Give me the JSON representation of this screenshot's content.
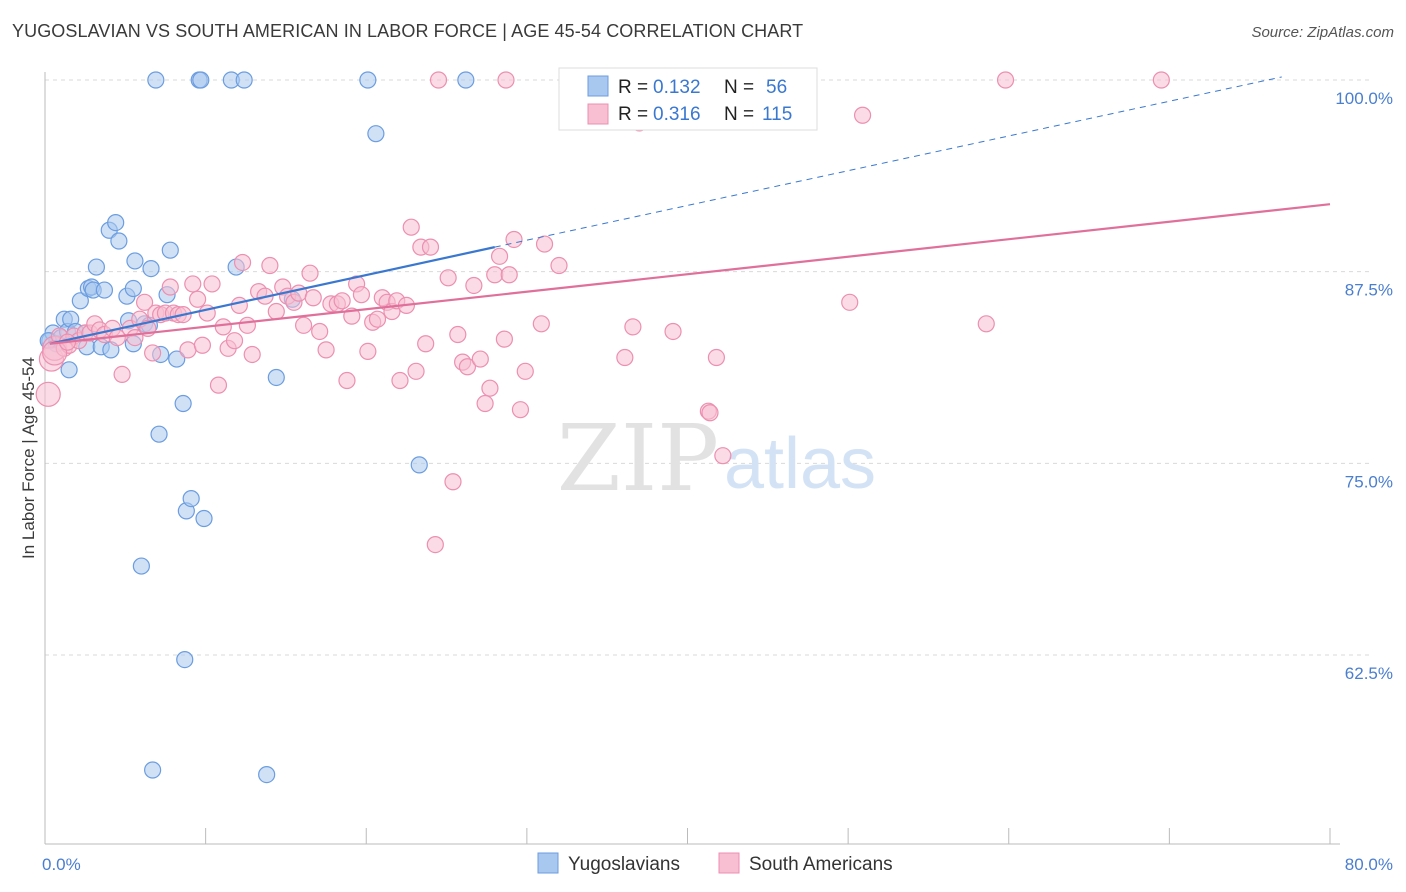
{
  "title": "YUGOSLAVIAN VS SOUTH AMERICAN IN LABOR FORCE | AGE 45-54 CORRELATION CHART",
  "source": "Source: ZipAtlas.com",
  "watermark": {
    "zip": "ZIP",
    "atlas": "atlas"
  },
  "colors": {
    "blue_fill": "#a9c8ef",
    "blue_stroke": "#6b9de0",
    "blue_line": "#3a78d0",
    "pink_fill": "#f7bfd1",
    "pink_stroke": "#ec8fb0",
    "pink_line": "#e0709a",
    "axis_text_blue": "#4a7ecf",
    "grid": "#d9d9d9"
  },
  "legend_top": {
    "rows": [
      {
        "r_label": "R = ",
        "r_value": "0.132",
        "n_label": "N = ",
        "n_value": "56",
        "series": "blue"
      },
      {
        "r_label": "R = ",
        "r_value": "0.316",
        "n_label": "N = ",
        "n_value": "115",
        "series": "pink"
      }
    ]
  },
  "chart_data": {
    "type": "scatter",
    "title": "YUGOSLAVIAN VS SOUTH AMERICAN IN LABOR FORCE | AGE 45-54 CORRELATION CHART",
    "xlabel": "",
    "ylabel": "In Labor Force | Age 45-54",
    "xlim": [
      0,
      80
    ],
    "ylim": [
      50,
      102
    ],
    "x_tick_labels": [
      {
        "value": 0,
        "label": "0.0%"
      },
      {
        "value": 80,
        "label": "80.0%"
      }
    ],
    "y_tick_labels": [
      {
        "value": 100,
        "label": "100.0%"
      },
      {
        "value": 87.5,
        "label": "87.5%"
      },
      {
        "value": 75,
        "label": "75.0%"
      },
      {
        "value": 62.5,
        "label": "62.5%"
      }
    ],
    "grid": true,
    "legend_position": "bottom-center",
    "series": [
      {
        "name": "Yugoslavians",
        "color": "blue",
        "r": 0.132,
        "n": 56,
        "trend": {
          "x": [
            0.3,
            28
          ],
          "y": [
            82.8,
            89.1
          ]
        },
        "trend_extension": {
          "x": [
            28,
            77
          ],
          "y": [
            89.1,
            100.2
          ]
        },
        "points": [
          [
            0.3,
            83.0
          ],
          [
            0.5,
            83.5
          ],
          [
            0.7,
            82.8
          ],
          [
            1.0,
            83.2
          ],
          [
            1.2,
            84.4
          ],
          [
            1.4,
            83.6
          ],
          [
            1.5,
            81.1
          ],
          [
            1.6,
            84.4
          ],
          [
            1.9,
            83.6
          ],
          [
            2.2,
            85.6
          ],
          [
            2.5,
            83.5
          ],
          [
            2.6,
            82.6
          ],
          [
            2.7,
            86.4
          ],
          [
            2.9,
            86.5
          ],
          [
            3.0,
            86.3
          ],
          [
            3.2,
            87.8
          ],
          [
            3.5,
            82.6
          ],
          [
            3.7,
            86.3
          ],
          [
            4.0,
            90.2
          ],
          [
            4.1,
            82.4
          ],
          [
            4.4,
            90.7
          ],
          [
            4.6,
            89.5
          ],
          [
            5.1,
            85.9
          ],
          [
            5.2,
            84.3
          ],
          [
            5.5,
            86.4
          ],
          [
            5.5,
            82.8
          ],
          [
            5.6,
            88.2
          ],
          [
            6.0,
            68.3
          ],
          [
            6.2,
            84.1
          ],
          [
            6.5,
            84.0
          ],
          [
            6.6,
            87.7
          ],
          [
            6.7,
            55.0
          ],
          [
            6.9,
            100.0
          ],
          [
            7.1,
            76.9
          ],
          [
            7.2,
            82.1
          ],
          [
            7.6,
            86.0
          ],
          [
            7.8,
            88.9
          ],
          [
            8.2,
            81.8
          ],
          [
            8.6,
            78.9
          ],
          [
            8.7,
            62.2
          ],
          [
            8.8,
            71.9
          ],
          [
            9.1,
            72.7
          ],
          [
            9.6,
            100.0
          ],
          [
            9.7,
            100.0
          ],
          [
            9.9,
            71.4
          ],
          [
            11.6,
            100.0
          ],
          [
            11.9,
            87.8
          ],
          [
            12.4,
            100.0
          ],
          [
            13.8,
            54.7
          ],
          [
            14.4,
            80.6
          ],
          [
            15.4,
            85.7
          ],
          [
            20.1,
            100.0
          ],
          [
            20.6,
            96.5
          ],
          [
            23.3,
            74.9
          ],
          [
            26.2,
            100.0
          ],
          [
            0.2,
            83.0
          ]
        ]
      },
      {
        "name": "South Americans",
        "color": "pink",
        "r": 0.316,
        "n": 115,
        "trend": {
          "x": [
            0.3,
            80
          ],
          "y": [
            82.8,
            91.9
          ]
        },
        "points": [
          [
            0.2,
            79.5
          ],
          [
            0.4,
            81.8
          ],
          [
            0.6,
            82.5
          ],
          [
            0.9,
            83.3
          ],
          [
            1.2,
            82.5
          ],
          [
            1.5,
            82.7
          ],
          [
            1.8,
            83.3
          ],
          [
            2.1,
            83.0
          ],
          [
            2.5,
            83.5
          ],
          [
            2.8,
            83.5
          ],
          [
            3.1,
            84.1
          ],
          [
            3.4,
            83.7
          ],
          [
            3.7,
            83.4
          ],
          [
            4.2,
            83.8
          ],
          [
            4.5,
            83.2
          ],
          [
            4.8,
            80.8
          ],
          [
            5.3,
            83.8
          ],
          [
            5.6,
            83.2
          ],
          [
            5.9,
            84.4
          ],
          [
            6.2,
            85.5
          ],
          [
            6.4,
            83.8
          ],
          [
            6.7,
            82.2
          ],
          [
            6.9,
            84.8
          ],
          [
            7.2,
            84.7
          ],
          [
            7.5,
            84.8
          ],
          [
            7.8,
            86.5
          ],
          [
            8.0,
            84.8
          ],
          [
            8.3,
            84.7
          ],
          [
            8.6,
            84.7
          ],
          [
            8.9,
            82.4
          ],
          [
            9.2,
            86.7
          ],
          [
            9.5,
            85.7
          ],
          [
            9.8,
            82.7
          ],
          [
            10.1,
            84.8
          ],
          [
            10.4,
            86.7
          ],
          [
            10.8,
            80.1
          ],
          [
            11.1,
            83.9
          ],
          [
            11.4,
            82.5
          ],
          [
            11.8,
            83.0
          ],
          [
            12.1,
            85.3
          ],
          [
            12.3,
            88.1
          ],
          [
            12.6,
            84.0
          ],
          [
            12.9,
            82.1
          ],
          [
            13.3,
            86.2
          ],
          [
            13.7,
            85.9
          ],
          [
            14.0,
            87.9
          ],
          [
            14.4,
            84.9
          ],
          [
            14.8,
            86.5
          ],
          [
            15.1,
            85.9
          ],
          [
            15.5,
            85.5
          ],
          [
            15.8,
            86.1
          ],
          [
            16.1,
            84.0
          ],
          [
            16.5,
            87.4
          ],
          [
            16.7,
            85.8
          ],
          [
            17.1,
            83.6
          ],
          [
            17.5,
            82.4
          ],
          [
            17.8,
            85.4
          ],
          [
            18.2,
            85.4
          ],
          [
            18.5,
            85.6
          ],
          [
            18.8,
            80.4
          ],
          [
            19.1,
            84.6
          ],
          [
            19.4,
            86.7
          ],
          [
            19.7,
            86.0
          ],
          [
            20.1,
            82.3
          ],
          [
            20.4,
            84.2
          ],
          [
            20.7,
            84.4
          ],
          [
            21.0,
            85.8
          ],
          [
            21.3,
            85.5
          ],
          [
            21.6,
            84.9
          ],
          [
            21.9,
            85.6
          ],
          [
            22.1,
            80.4
          ],
          [
            22.5,
            85.3
          ],
          [
            22.8,
            90.4
          ],
          [
            23.1,
            81.0
          ],
          [
            23.4,
            89.1
          ],
          [
            23.7,
            82.8
          ],
          [
            24.0,
            89.1
          ],
          [
            24.3,
            69.7
          ],
          [
            25.1,
            87.1
          ],
          [
            25.4,
            73.8
          ],
          [
            25.7,
            83.4
          ],
          [
            26.0,
            81.6
          ],
          [
            26.3,
            81.3
          ],
          [
            26.7,
            86.6
          ],
          [
            27.1,
            81.8
          ],
          [
            27.4,
            78.9
          ],
          [
            27.7,
            79.9
          ],
          [
            28.0,
            87.3
          ],
          [
            28.3,
            88.5
          ],
          [
            28.6,
            83.1
          ],
          [
            28.9,
            87.3
          ],
          [
            29.2,
            89.6
          ],
          [
            29.6,
            78.5
          ],
          [
            29.9,
            81.0
          ],
          [
            30.9,
            84.1
          ],
          [
            31.1,
            89.3
          ],
          [
            32.0,
            87.9
          ],
          [
            36.1,
            81.9
          ],
          [
            36.6,
            83.9
          ],
          [
            39.1,
            83.6
          ],
          [
            41.3,
            78.4
          ],
          [
            41.4,
            78.3
          ],
          [
            41.8,
            81.9
          ],
          [
            42.2,
            75.5
          ],
          [
            50.1,
            85.5
          ],
          [
            50.9,
            97.7
          ],
          [
            58.6,
            84.1
          ],
          [
            59.8,
            100.0
          ],
          [
            69.5,
            100.0
          ],
          [
            24.5,
            100.0
          ],
          [
            28.7,
            100.0
          ],
          [
            32.6,
            100.0
          ],
          [
            37.0,
            97.2
          ],
          [
            0.6,
            82.2
          ],
          [
            1.4,
            82.9
          ]
        ]
      }
    ]
  }
}
